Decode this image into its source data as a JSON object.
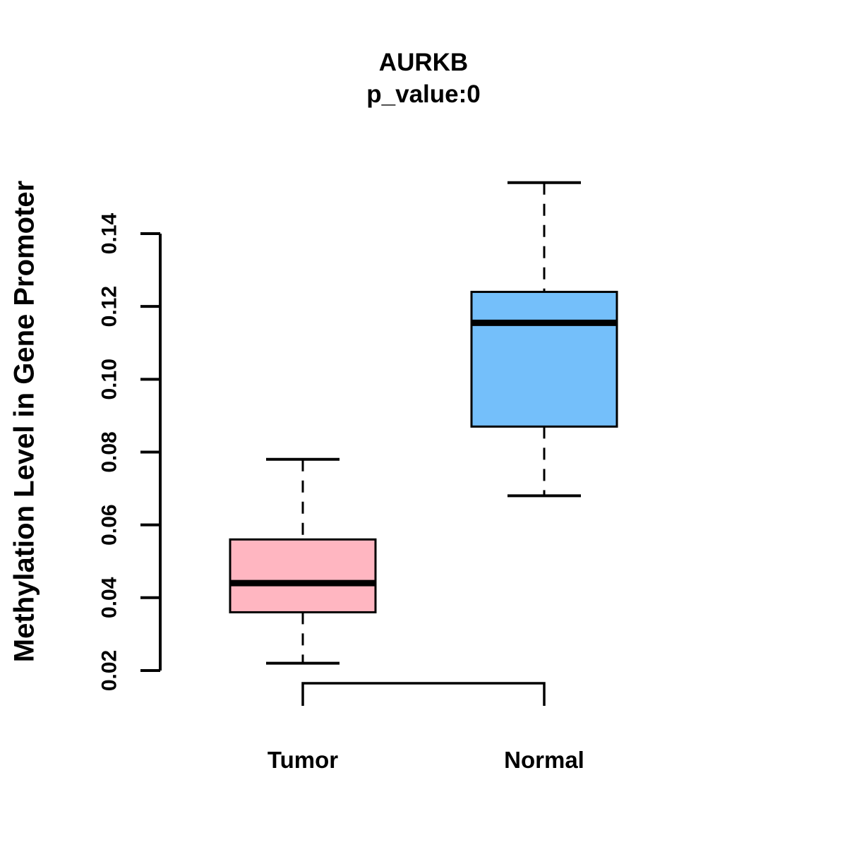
{
  "chart_data": {
    "type": "boxplot",
    "title": "AURKB",
    "subtitle": "p_value:0",
    "ylabel": "Methylation Level in Gene Promoter",
    "xlabel": "",
    "categories": [
      "Tumor",
      "Normal"
    ],
    "yticks": [
      0.02,
      0.04,
      0.06,
      0.08,
      0.1,
      0.12,
      0.14
    ],
    "ytick_labels": [
      "0.02",
      "0.04",
      "0.06",
      "0.08",
      "0.10",
      "0.12",
      "0.14"
    ],
    "ylim": [
      0.02,
      0.155
    ],
    "grid": false,
    "legend": "none",
    "series": [
      {
        "name": "Tumor",
        "stats": {
          "lower_whisker": 0.022,
          "q1": 0.036,
          "median": 0.044,
          "q3": 0.056,
          "upper_whisker": 0.078
        },
        "fill_color": "#FFB6C1"
      },
      {
        "name": "Normal",
        "stats": {
          "lower_whisker": 0.068,
          "q1": 0.087,
          "median": 0.1155,
          "q3": 0.124,
          "upper_whisker": 0.154
        },
        "fill_color": "#74BFFA"
      }
    ],
    "colors": {
      "stroke": "#000000",
      "background": "#FFFFFF"
    },
    "annotations": {
      "comparison_bracket": {
        "from": "Tumor",
        "to": "Normal"
      }
    }
  }
}
